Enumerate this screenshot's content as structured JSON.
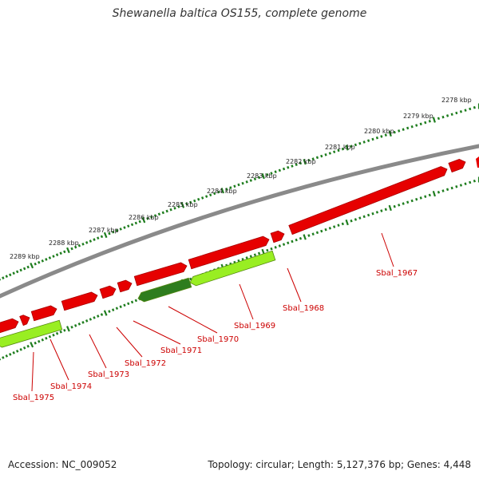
{
  "title": "Shewanella baltica OS155, complete genome",
  "footer": {
    "accession": "Accession: NC_009052",
    "info": "Topology: circular; Length: 5,127,376 bp; Genes: 4,448"
  },
  "colors": {
    "backbone": "#8a8a8a",
    "forward_gene": "#e60000",
    "reverse_gene": "#99ee22",
    "reverse_gene_dark": "#2e7d1e",
    "ticks": "#1e7d1e",
    "label": "#cc0000"
  },
  "scale_labels": [
    "2278 kbp",
    "2279 kbp",
    "2280 kbp",
    "2281 kbp",
    "2282 kbp",
    "2283 kbp",
    "2284 kbp",
    "2285 kbp",
    "2286 kbp",
    "2287 kbp",
    "2288 kbp",
    "2289 kbp"
  ],
  "gene_labels": [
    "Sbal_1967",
    "Sbal_1968",
    "Sbal_1969",
    "Sbal_1970",
    "Sbal_1971",
    "Sbal_1972",
    "Sbal_1973",
    "Sbal_1974",
    "Sbal_1975"
  ]
}
